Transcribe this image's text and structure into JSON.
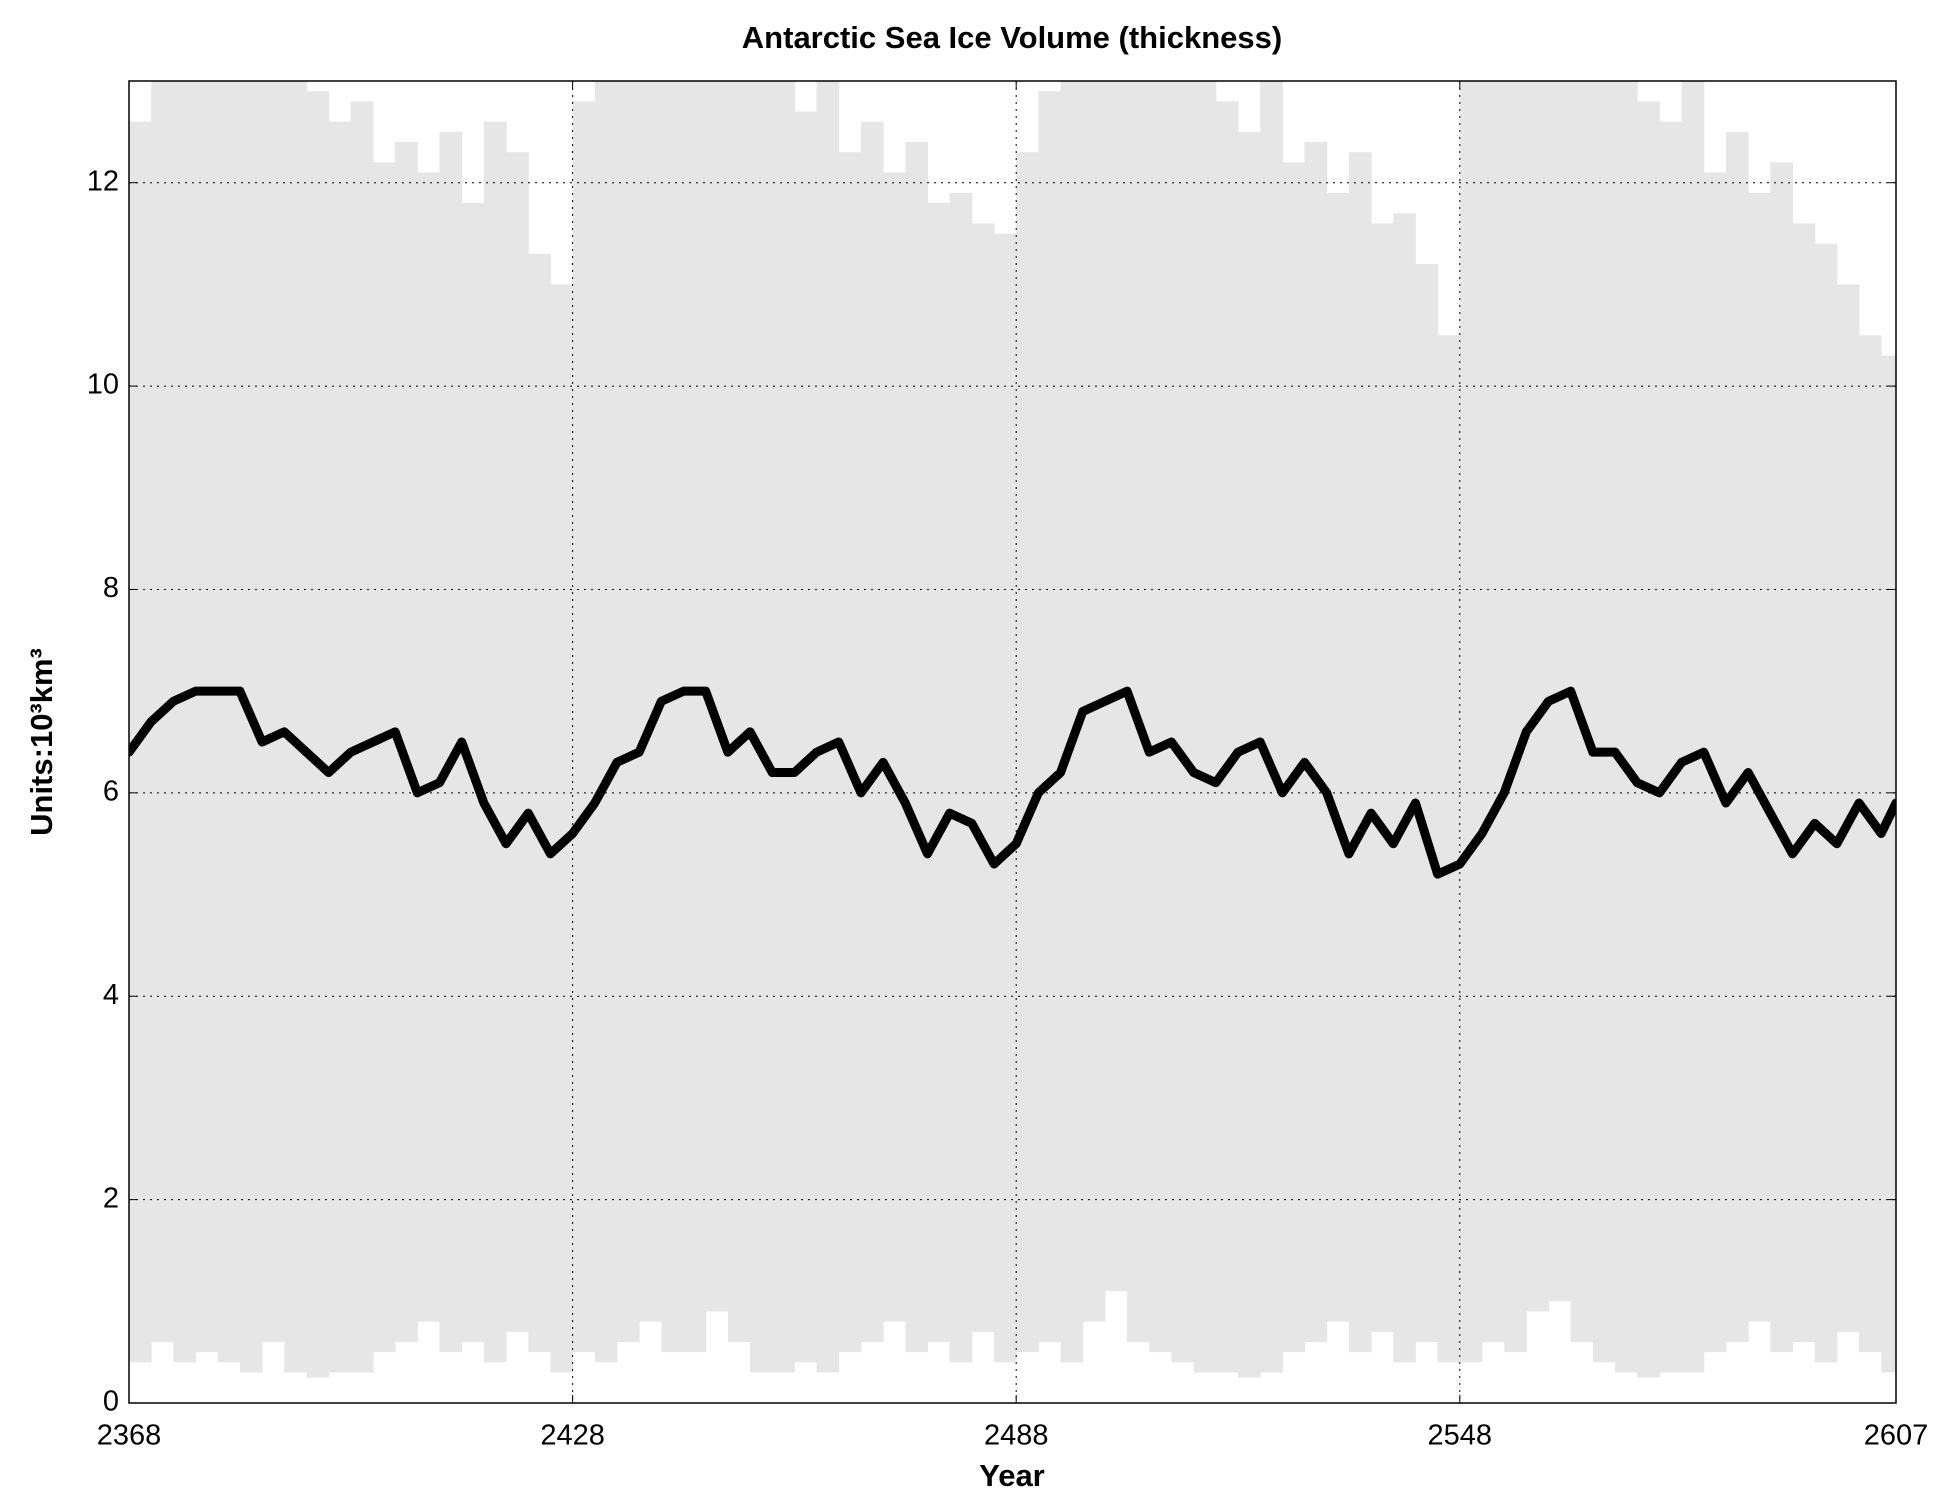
{
  "chart_data": {
    "type": "line",
    "title": "Antarctic Sea Ice Volume (thickness)",
    "xlabel": "Year",
    "ylabel": "Units:10³km³",
    "x": [
      2368,
      2371,
      2374,
      2377,
      2380,
      2383,
      2386,
      2389,
      2392,
      2395,
      2398,
      2401,
      2404,
      2407,
      2410,
      2413,
      2416,
      2419,
      2422,
      2425,
      2428,
      2431,
      2434,
      2437,
      2440,
      2443,
      2446,
      2449,
      2452,
      2455,
      2458,
      2461,
      2464,
      2467,
      2470,
      2473,
      2476,
      2479,
      2482,
      2485,
      2488,
      2491,
      2494,
      2497,
      2500,
      2503,
      2506,
      2509,
      2512,
      2515,
      2518,
      2521,
      2524,
      2527,
      2530,
      2533,
      2536,
      2539,
      2542,
      2545,
      2548,
      2551,
      2554,
      2557,
      2560,
      2563,
      2566,
      2569,
      2572,
      2575,
      2578,
      2581,
      2584,
      2587,
      2590,
      2593,
      2596,
      2599,
      2602,
      2605,
      2607
    ],
    "band": {
      "color": "#e6e6e6",
      "upper": [
        12.6,
        13.5,
        13.5,
        13.5,
        13.5,
        13.5,
        13.2,
        13.5,
        12.9,
        12.6,
        12.8,
        12.2,
        12.4,
        12.1,
        12.5,
        11.8,
        12.6,
        12.3,
        11.3,
        11.0,
        12.8,
        13.3,
        13.5,
        13.5,
        13.5,
        13.5,
        13.5,
        13.3,
        13.5,
        13.0,
        12.7,
        13.2,
        12.3,
        12.6,
        12.1,
        12.4,
        11.8,
        11.9,
        11.6,
        11.5,
        12.3,
        12.9,
        13.5,
        13.5,
        13.5,
        13.5,
        13.5,
        13.2,
        13.5,
        12.8,
        12.5,
        13.0,
        12.2,
        12.4,
        11.9,
        12.3,
        11.6,
        11.7,
        11.2,
        10.5,
        13.0,
        13.5,
        13.5,
        13.5,
        13.5,
        13.5,
        13.3,
        13.5,
        12.8,
        12.6,
        13.0,
        12.1,
        12.5,
        11.9,
        12.2,
        11.6,
        11.4,
        11.0,
        10.5,
        10.3,
        12.2
      ],
      "lower": [
        0.4,
        0.6,
        0.4,
        0.5,
        0.4,
        0.3,
        0.6,
        0.3,
        0.25,
        0.3,
        0.3,
        0.5,
        0.6,
        0.8,
        0.5,
        0.6,
        0.4,
        0.7,
        0.5,
        0.3,
        0.5,
        0.4,
        0.6,
        0.8,
        0.5,
        0.5,
        0.9,
        0.6,
        0.3,
        0.3,
        0.4,
        0.3,
        0.5,
        0.6,
        0.8,
        0.5,
        0.6,
        0.4,
        0.7,
        0.4,
        0.5,
        0.6,
        0.4,
        0.8,
        1.1,
        0.6,
        0.5,
        0.4,
        0.3,
        0.3,
        0.25,
        0.3,
        0.5,
        0.6,
        0.8,
        0.5,
        0.7,
        0.4,
        0.6,
        0.4,
        0.4,
        0.6,
        0.5,
        0.9,
        1.0,
        0.6,
        0.4,
        0.3,
        0.25,
        0.3,
        0.3,
        0.5,
        0.6,
        0.8,
        0.5,
        0.6,
        0.4,
        0.7,
        0.5,
        0.3,
        0.5
      ]
    },
    "series": [
      {
        "color": "#000000",
        "values": [
          6.4,
          6.7,
          6.9,
          7.0,
          7.0,
          7.0,
          6.5,
          6.6,
          6.4,
          6.2,
          6.4,
          6.5,
          6.6,
          6.0,
          6.1,
          6.5,
          5.9,
          5.5,
          5.8,
          5.4,
          5.6,
          5.9,
          6.3,
          6.4,
          6.9,
          7.0,
          7.0,
          6.4,
          6.6,
          6.2,
          6.2,
          6.4,
          6.5,
          6.0,
          6.3,
          5.9,
          5.4,
          5.8,
          5.7,
          5.3,
          5.5,
          6.0,
          6.2,
          6.8,
          6.9,
          7.0,
          6.4,
          6.5,
          6.2,
          6.1,
          6.4,
          6.5,
          6.0,
          6.3,
          6.0,
          5.4,
          5.8,
          5.5,
          5.9,
          5.2,
          5.3,
          5.6,
          6.0,
          6.6,
          6.9,
          7.0,
          6.4,
          6.4,
          6.1,
          6.0,
          6.3,
          6.4,
          5.9,
          6.2,
          5.8,
          5.4,
          5.7,
          5.5,
          5.9,
          5.6,
          5.9
        ]
      }
    ],
    "xlim": [
      2368,
      2607
    ],
    "xticks": [
      2368,
      2428,
      2488,
      2548,
      2607
    ],
    "ylim": [
      0,
      13
    ],
    "yticks": [
      0,
      2,
      4,
      6,
      8,
      10,
      12
    ],
    "grid": true
  }
}
